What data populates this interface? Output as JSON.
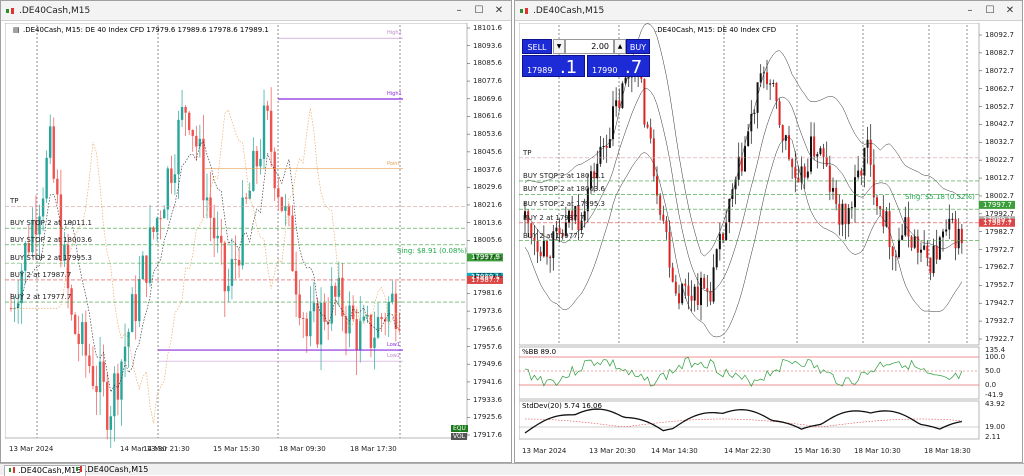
{
  "left_window": {
    "title": ".DE40Cash,M15",
    "chart_header": ".DE40Cash, M15:  DE 40 Index CFD  17979.6 17989.6 17978.6 17989.1",
    "price_axis": [
      "18101.6",
      "18093.6",
      "18085.6",
      "18077.6",
      "18069.6",
      "18061.6",
      "18053.6",
      "18045.6",
      "18037.6",
      "18029.6",
      "18021.6",
      "18013.6",
      "18005.6",
      "17997.6",
      "17989.6",
      "17981.6",
      "17973.6",
      "17965.6",
      "17957.6",
      "17949.6",
      "17941.6",
      "17933.6",
      "17925.6",
      "17917.6"
    ],
    "time_axis": [
      "13 Mar 2024",
      "14 Mar 13:30",
      "14 Mar 21:30",
      "15 Mar 15:30",
      "18 Mar 09:30",
      "18 Mar 17:30"
    ],
    "trade_labels": [
      "TP",
      "BUY STOP 2 at 18011.1",
      "BUY STOP 2 at 18003.6",
      "BUY STOP 2 at 17995.3",
      "BUY 2 at 17987.7",
      "BUY 2 at 17977.7"
    ],
    "level_labels": [
      "High2",
      "High1",
      "Point",
      "Low1",
      "Low2"
    ],
    "profit_label": "Sing: $8.91 (0.08%)",
    "price_tag_green": "17997.9",
    "price_tag_blue": "17989.1",
    "price_tag_red": "17987.7",
    "vol_boxes": [
      "EQU",
      "VOL"
    ]
  },
  "right_window": {
    "title": ".DE40Cash,M15",
    "chart_header": ".DE40Cash, M15:  DE 40 Index CFD",
    "one_click": {
      "sell_label": "SELL",
      "buy_label": "BUY",
      "volume": "2.00",
      "sell_small": "17989",
      "sell_big": ".1",
      "buy_small": "17990",
      "buy_big": ".7"
    },
    "price_axis": [
      "18092.7",
      "18082.7",
      "18072.7",
      "18062.7",
      "18052.7",
      "18042.7",
      "18032.7",
      "18022.7",
      "18012.7",
      "18002.7",
      "17992.7",
      "17982.7",
      "17972.7",
      "17962.7",
      "17952.7",
      "17942.7",
      "17932.7",
      "17922.7"
    ],
    "price_tag_green": "17997.7",
    "price_tag_blue": "17989.1",
    "price_tag_red": "17987.7",
    "time_axis": [
      "13 Mar 2024",
      "13 Mar 20:30",
      "14 Mar 14:30",
      "14 Mar 22:30",
      "15 Mar 16:30",
      "18 Mar 10:30",
      "18 Mar 18:30"
    ],
    "trade_labels": [
      "TP",
      "BUY STOP 2 at 18011.1",
      "BUY STOP 2 at 18003.6",
      "BUY STOP 2 at 17995.3",
      "BUY 2 at 17987.7",
      "BUY 2 at 17977.7"
    ],
    "profit_label": "Sing: $5.18 (0.52%)",
    "bb_indicator": {
      "label": "%BB 89.0",
      "axis": [
        "135.4",
        "100.0",
        "50.0",
        "0.0",
        "-41.9"
      ]
    },
    "stddev_indicator": {
      "label": "StdDev(20) 5.74 16.06",
      "axis": [
        "43.92",
        "19.00",
        "2.11"
      ]
    }
  },
  "tabs": [
    {
      "label": ".DE40Cash,M15",
      "active": true
    },
    {
      "label": ".DE40Cash,M15",
      "active": false
    }
  ],
  "window_buttons": [
    "minimize-icon",
    "maximize-icon",
    "close-icon"
  ],
  "colors": {
    "bull": "#26a69a",
    "bear": "#ef5350",
    "grid": "#c0c0c0",
    "trade_level": "#3b9e3b",
    "one_click": "#1d2bd6"
  }
}
